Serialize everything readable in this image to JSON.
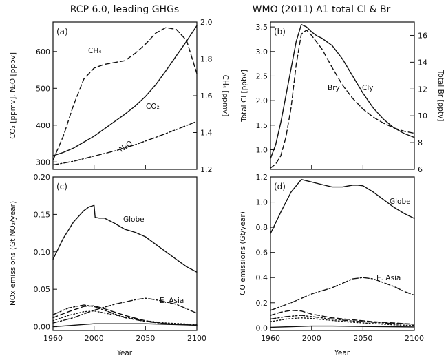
{
  "chart_data": [
    {
      "panel": "a",
      "label": "(a)",
      "type": "line",
      "title": "RCP 6.0, leading GHGs",
      "xlabel": "",
      "ylabel": "CO₂ [ppmv], N₂O [ppbv]",
      "ylabel_right": "CH₄ [ppmv]",
      "xlim": [
        1960,
        2100
      ],
      "ylim": [
        280,
        680
      ],
      "ylim_right": [
        1.2,
        2.0
      ],
      "xticks": [
        1960,
        2000,
        2050,
        2100
      ],
      "xtick_labels_shown": false,
      "yticks": [
        300,
        400,
        500,
        600
      ],
      "yticks_right": [
        1.2,
        1.4,
        1.6,
        1.8,
        2.0
      ],
      "series": [
        {
          "name": "CH₄",
          "axis": "right",
          "dash": "dashed",
          "x": [
            1960,
            1970,
            1980,
            1990,
            2000,
            2010,
            2020,
            2030,
            2040,
            2050,
            2060,
            2070,
            2080,
            2090,
            2100
          ],
          "y": [
            1.25,
            1.38,
            1.55,
            1.69,
            1.75,
            1.77,
            1.78,
            1.79,
            1.83,
            1.88,
            1.94,
            1.97,
            1.96,
            1.9,
            1.72
          ]
        },
        {
          "name": "CO₂",
          "axis": "left",
          "dash": "solid",
          "x": [
            1960,
            1970,
            1980,
            1990,
            2000,
            2010,
            2020,
            2030,
            2040,
            2050,
            2060,
            2070,
            2080,
            2090,
            2100
          ],
          "y": [
            317,
            326,
            338,
            354,
            370,
            390,
            410,
            430,
            452,
            478,
            510,
            548,
            588,
            628,
            670
          ]
        },
        {
          "name": "N₂O",
          "axis": "left",
          "dash": "dashdot",
          "x": [
            1960,
            1980,
            2000,
            2020,
            2040,
            2060,
            2080,
            2100
          ],
          "y": [
            292,
            302,
            316,
            330,
            347,
            367,
            388,
            410
          ]
        }
      ]
    },
    {
      "panel": "b",
      "label": "(b)",
      "type": "line",
      "title": "WMO (2011) A1 total Cl & Br",
      "xlabel": "",
      "ylabel": "Total Cl [ppbv]",
      "ylabel_right": "Total Br [pptv]",
      "xlim": [
        1960,
        2100
      ],
      "ylim": [
        0.6,
        3.6
      ],
      "ylim_right": [
        6,
        17
      ],
      "xticks": [
        1960,
        2000,
        2050,
        2100
      ],
      "xtick_labels_shown": false,
      "yticks": [
        1.0,
        1.5,
        2.0,
        2.5,
        3.0,
        3.5
      ],
      "yticks_right": [
        6,
        8,
        10,
        12,
        14,
        16
      ],
      "series": [
        {
          "name": "Cly",
          "axis": "left",
          "dash": "solid",
          "x": [
            1960,
            1965,
            1970,
            1975,
            1980,
            1985,
            1990,
            1995,
            2000,
            2005,
            2010,
            2020,
            2030,
            2040,
            2050,
            2060,
            2070,
            2080,
            2090,
            2100
          ],
          "y": [
            0.82,
            1.1,
            1.55,
            2.1,
            2.65,
            3.2,
            3.55,
            3.5,
            3.4,
            3.32,
            3.27,
            3.12,
            2.85,
            2.5,
            2.15,
            1.85,
            1.62,
            1.45,
            1.33,
            1.25
          ]
        },
        {
          "name": "Bry",
          "axis": "right",
          "dash": "dashed",
          "x": [
            1960,
            1965,
            1970,
            1975,
            1980,
            1985,
            1990,
            1995,
            2000,
            2005,
            2010,
            2020,
            2030,
            2040,
            2050,
            2060,
            2070,
            2080,
            2090,
            2100
          ],
          "y": [
            6.1,
            6.4,
            7.0,
            8.4,
            10.6,
            13.8,
            16.1,
            16.4,
            16.0,
            15.5,
            15.0,
            13.6,
            12.3,
            11.3,
            10.5,
            9.9,
            9.45,
            9.1,
            8.85,
            8.7
          ]
        }
      ],
      "annotations": {
        "bry": "Bry",
        "cly": "Cly"
      }
    },
    {
      "panel": "c",
      "label": "(c)",
      "type": "line",
      "title": "",
      "xlabel": "Year",
      "ylabel": "NOx emissions (Gt NO₂/year)",
      "xlim": [
        1960,
        2100
      ],
      "ylim": [
        -0.005,
        0.2
      ],
      "xticks": [
        1960,
        2000,
        2050,
        2100
      ],
      "yticks": [
        0.0,
        0.05,
        0.1,
        0.15,
        0.2
      ],
      "series": [
        {
          "name": "Globe",
          "dash": "solid",
          "x": [
            1960,
            1970,
            1980,
            1990,
            1995,
            2000,
            2001,
            2005,
            2010,
            2020,
            2030,
            2040,
            2050,
            2060,
            2070,
            2080,
            2090,
            2100
          ],
          "y": [
            0.09,
            0.118,
            0.14,
            0.155,
            0.16,
            0.162,
            0.146,
            0.145,
            0.145,
            0.138,
            0.13,
            0.126,
            0.12,
            0.11,
            0.1,
            0.09,
            0.08,
            0.073
          ]
        },
        {
          "name": "E. Asia",
          "dash": "dashdot",
          "x": [
            1960,
            1980,
            2000,
            2020,
            2040,
            2050,
            2060,
            2070,
            2080,
            2090,
            2100
          ],
          "y": [
            0.005,
            0.012,
            0.022,
            0.03,
            0.036,
            0.038,
            0.036,
            0.033,
            0.03,
            0.024,
            0.018
          ]
        },
        {
          "name": "",
          "dash": "dashed",
          "x": [
            1960,
            1975,
            1990,
            2000,
            2010,
            2030,
            2050,
            2070,
            2100
          ],
          "y": [
            0.012,
            0.02,
            0.027,
            0.028,
            0.024,
            0.015,
            0.008,
            0.004,
            0.002
          ]
        },
        {
          "name": "",
          "dash": "dashdotdot",
          "x": [
            1960,
            1975,
            1990,
            2000,
            2010,
            2030,
            2050,
            2070,
            2100
          ],
          "y": [
            0.016,
            0.025,
            0.029,
            0.027,
            0.022,
            0.012,
            0.007,
            0.004,
            0.002
          ]
        },
        {
          "name": "",
          "dash": "dotted",
          "x": [
            1960,
            1975,
            1990,
            2000,
            2015,
            2030,
            2050,
            2070,
            2100
          ],
          "y": [
            0.008,
            0.015,
            0.02,
            0.021,
            0.017,
            0.013,
            0.008,
            0.005,
            0.003
          ]
        },
        {
          "name": "",
          "dash": "solid",
          "x": [
            1960,
            1980,
            2000,
            2020,
            2050,
            2075,
            2100
          ],
          "y": [
            0.0,
            0.002,
            0.004,
            0.004,
            0.004,
            0.003,
            0.002
          ]
        }
      ],
      "annotations": {
        "globe": "Globe",
        "east_asia": "E. Asia"
      }
    },
    {
      "panel": "d",
      "label": "(d)",
      "type": "line",
      "title": "",
      "xlabel": "Year",
      "ylabel": "CO emissions (Gt/year)",
      "xlim": [
        1960,
        2100
      ],
      "ylim": [
        -0.02,
        1.2
      ],
      "xticks": [
        1960,
        2000,
        2050,
        2100
      ],
      "yticks": [
        0.0,
        0.2,
        0.4,
        0.6,
        0.8,
        1.0,
        1.2
      ],
      "series": [
        {
          "name": "Globe",
          "dash": "solid",
          "x": [
            1960,
            1970,
            1980,
            1990,
            2000,
            2010,
            2020,
            2030,
            2040,
            2045,
            2050,
            2060,
            2070,
            2080,
            2090,
            2100
          ],
          "y": [
            0.75,
            0.92,
            1.08,
            1.18,
            1.16,
            1.14,
            1.12,
            1.12,
            1.135,
            1.135,
            1.13,
            1.08,
            1.02,
            0.96,
            0.91,
            0.87
          ]
        },
        {
          "name": "E. Asia",
          "dash": "dashdot",
          "x": [
            1960,
            1980,
            2000,
            2020,
            2040,
            2050,
            2060,
            2070,
            2080,
            2090,
            2100
          ],
          "y": [
            0.14,
            0.2,
            0.27,
            0.32,
            0.39,
            0.4,
            0.39,
            0.36,
            0.33,
            0.29,
            0.26
          ]
        },
        {
          "name": "",
          "dash": "dashed",
          "x": [
            1960,
            1970,
            1980,
            1990,
            2000,
            2020,
            2040,
            2060,
            2080,
            2100
          ],
          "y": [
            0.1,
            0.125,
            0.14,
            0.135,
            0.11,
            0.08,
            0.065,
            0.05,
            0.04,
            0.03
          ]
        },
        {
          "name": "",
          "dash": "dashdotdot",
          "x": [
            1960,
            1975,
            1990,
            2000,
            2020,
            2040,
            2060,
            2080,
            2100
          ],
          "y": [
            0.07,
            0.09,
            0.1,
            0.09,
            0.07,
            0.055,
            0.045,
            0.035,
            0.03
          ]
        },
        {
          "name": "",
          "dash": "dotted",
          "x": [
            1960,
            1975,
            1990,
            2000,
            2020,
            2040,
            2060,
            2080,
            2100
          ],
          "y": [
            0.05,
            0.07,
            0.08,
            0.075,
            0.06,
            0.045,
            0.035,
            0.025,
            0.02
          ]
        },
        {
          "name": "",
          "dash": "solid",
          "x": [
            1960,
            1980,
            2000,
            2020,
            2050,
            2075,
            2100
          ],
          "y": [
            0.005,
            0.01,
            0.015,
            0.015,
            0.012,
            0.01,
            0.008
          ]
        }
      ],
      "annotations": {
        "globe": "Globe",
        "east_asia": "E. Asia"
      }
    }
  ]
}
